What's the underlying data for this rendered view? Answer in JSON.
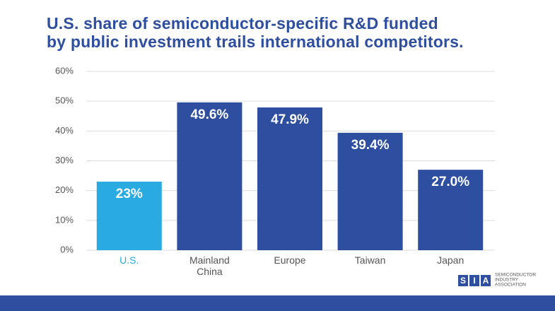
{
  "chart_data": {
    "type": "bar",
    "title": [
      "U.S. share of semiconductor-specific R&D funded",
      "by public investment trails international competitors."
    ],
    "categories": [
      "U.S.",
      "Mainland China",
      "Europe",
      "Taiwan",
      "Japan"
    ],
    "values": [
      23,
      49.6,
      47.9,
      39.4,
      27
    ],
    "value_labels": [
      "23%",
      "49.6%",
      "47.9%",
      "39.4%",
      "27.0%"
    ],
    "colors": [
      "#29abe2",
      "#2e4e9f",
      "#2e4e9f",
      "#2e4e9f",
      "#2e4e9f"
    ],
    "category_label_colors": [
      "#29abe2",
      "#555555",
      "#555555",
      "#555555",
      "#555555"
    ],
    "ylim": [
      0,
      60
    ],
    "yticks": [
      {
        "value": 0,
        "label": "0%"
      },
      {
        "value": 10,
        "label": "10%"
      },
      {
        "value": 20,
        "label": "20%"
      },
      {
        "value": 30,
        "label": "30%"
      },
      {
        "value": 40,
        "label": "40%"
      },
      {
        "value": 50,
        "label": "50%"
      },
      {
        "value": 60,
        "label": "60%"
      }
    ],
    "grid": true
  },
  "logo": {
    "letters": [
      "S",
      "I",
      "A"
    ],
    "text": [
      "SEMICONDUCTOR",
      "INDUSTRY",
      "ASSOCIATION"
    ]
  }
}
